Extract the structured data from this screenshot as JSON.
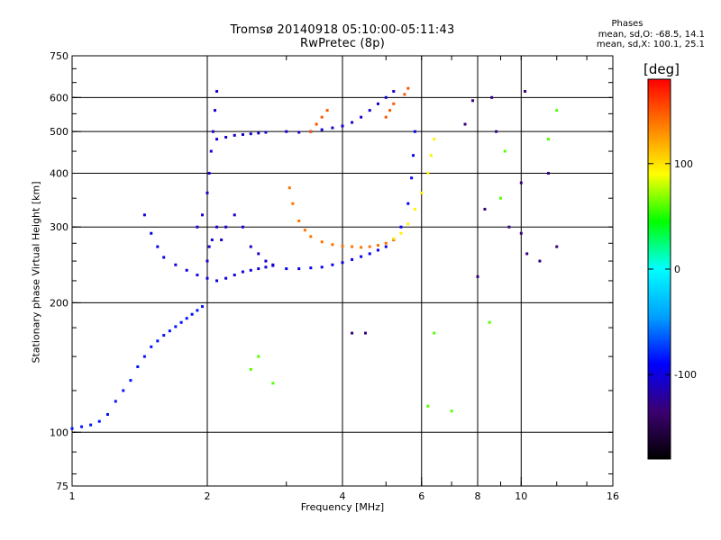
{
  "header": {
    "title_line1": "Tromsø 20140918 05:10:00-05:11:43",
    "title_line2": "RwPretec (8p)"
  },
  "stats": {
    "heading": "Phases",
    "line_o": "mean, sd,O: -68.5, 14.1",
    "line_x": "mean, sd,X: 100.1, 25.1"
  },
  "colorbar": {
    "unit_label": "[deg]",
    "range": [
      -180,
      180
    ],
    "ticks": [
      {
        "value": 100,
        "label": "100"
      },
      {
        "value": 0,
        "label": "0"
      },
      {
        "value": -100,
        "label": "-100"
      }
    ],
    "colors": [
      "#000000",
      "#3b0070",
      "#0000ff",
      "#00a0ff",
      "#00ffff",
      "#00ff00",
      "#ffff00",
      "#ff8000",
      "#ff0000"
    ]
  },
  "chart_data": {
    "type": "scatter",
    "title": "Tromsø 20140918 05:10:00-05:11:43",
    "subtitle": "RwPretec (8p)",
    "xlabel": "Frequency [MHz]",
    "ylabel": "Stationary phase Virtual Height [km]",
    "x_scale": "log",
    "y_scale": "log",
    "xlim": [
      1,
      16
    ],
    "ylim": [
      75,
      750
    ],
    "x_ticks": [
      1,
      2,
      4,
      6,
      8,
      10,
      16
    ],
    "y_ticks": [
      75,
      100,
      200,
      300,
      400,
      500,
      600,
      750
    ],
    "grid_x": [
      2,
      4,
      6,
      8,
      10
    ],
    "grid_y": [
      100,
      200,
      300,
      400,
      500,
      600
    ],
    "color_variable": "phase [deg]",
    "series": [
      {
        "phase": -85,
        "points": [
          [
            1.0,
            102
          ],
          [
            1.05,
            103
          ],
          [
            1.1,
            104
          ],
          [
            1.15,
            106
          ],
          [
            1.2,
            110
          ],
          [
            1.25,
            118
          ],
          [
            1.3,
            125
          ],
          [
            1.35,
            132
          ],
          [
            1.4,
            142
          ],
          [
            1.45,
            150
          ],
          [
            1.5,
            158
          ],
          [
            1.55,
            163
          ],
          [
            1.6,
            168
          ],
          [
            1.65,
            172
          ],
          [
            1.7,
            176
          ],
          [
            1.75,
            180
          ],
          [
            1.8,
            184
          ],
          [
            1.85,
            188
          ],
          [
            1.9,
            192
          ],
          [
            1.95,
            196
          ]
        ]
      },
      {
        "phase": -100,
        "points": [
          [
            1.45,
            320
          ],
          [
            1.5,
            290
          ],
          [
            1.55,
            270
          ],
          [
            1.6,
            255
          ],
          [
            1.7,
            245
          ],
          [
            1.8,
            238
          ],
          [
            1.9,
            232
          ],
          [
            2.0,
            228
          ],
          [
            2.1,
            225
          ],
          [
            2.2,
            228
          ],
          [
            2.3,
            232
          ],
          [
            2.4,
            236
          ],
          [
            2.5,
            238
          ],
          [
            2.6,
            240
          ],
          [
            2.7,
            242
          ],
          [
            2.8,
            244
          ]
        ]
      },
      {
        "phase": -105,
        "points": [
          [
            1.9,
            300
          ],
          [
            1.95,
            320
          ],
          [
            2.0,
            360
          ],
          [
            2.02,
            400
          ],
          [
            2.04,
            450
          ],
          [
            2.06,
            500
          ],
          [
            2.08,
            560
          ],
          [
            2.1,
            620
          ],
          [
            2.0,
            250
          ],
          [
            2.02,
            270
          ],
          [
            2.05,
            280
          ],
          [
            2.1,
            300
          ],
          [
            2.15,
            280
          ],
          [
            2.2,
            300
          ],
          [
            2.3,
            320
          ],
          [
            2.4,
            300
          ],
          [
            2.5,
            270
          ],
          [
            2.6,
            260
          ],
          [
            2.7,
            250
          ],
          [
            2.8,
            245
          ]
        ]
      },
      {
        "phase": -105,
        "points": [
          [
            2.1,
            480
          ],
          [
            2.2,
            485
          ],
          [
            2.3,
            490
          ],
          [
            2.4,
            492
          ],
          [
            2.5,
            494
          ],
          [
            2.6,
            496
          ],
          [
            2.7,
            498
          ],
          [
            3.0,
            500
          ],
          [
            3.2,
            498
          ],
          [
            3.4,
            500
          ],
          [
            3.6,
            505
          ],
          [
            3.8,
            510
          ],
          [
            4.0,
            515
          ],
          [
            4.2,
            525
          ],
          [
            4.4,
            540
          ],
          [
            4.6,
            560
          ],
          [
            4.8,
            580
          ],
          [
            5.0,
            600
          ],
          [
            5.2,
            620
          ]
        ]
      },
      {
        "phase": -95,
        "points": [
          [
            3.0,
            240
          ],
          [
            3.2,
            240
          ],
          [
            3.4,
            241
          ],
          [
            3.6,
            242
          ],
          [
            3.8,
            245
          ],
          [
            4.0,
            248
          ],
          [
            4.2,
            252
          ],
          [
            4.4,
            256
          ],
          [
            4.6,
            260
          ],
          [
            4.8,
            265
          ],
          [
            5.0,
            270
          ],
          [
            5.2,
            280
          ],
          [
            5.4,
            300
          ],
          [
            5.6,
            340
          ],
          [
            5.7,
            390
          ],
          [
            5.75,
            440
          ],
          [
            5.8,
            500
          ]
        ]
      },
      {
        "phase": 140,
        "points": [
          [
            3.05,
            370
          ],
          [
            3.1,
            340
          ],
          [
            3.2,
            310
          ],
          [
            3.3,
            295
          ],
          [
            3.4,
            285
          ],
          [
            3.6,
            277
          ],
          [
            3.8,
            273
          ],
          [
            4.0,
            271
          ],
          [
            4.2,
            270
          ],
          [
            4.4,
            269
          ],
          [
            4.6,
            270
          ],
          [
            4.8,
            272
          ],
          [
            5.0,
            275
          ],
          [
            5.2,
            280
          ]
        ]
      },
      {
        "phase": 95,
        "points": [
          [
            5.2,
            282
          ],
          [
            5.4,
            290
          ],
          [
            5.6,
            305
          ],
          [
            5.8,
            330
          ],
          [
            6.0,
            360
          ],
          [
            6.2,
            400
          ],
          [
            6.3,
            440
          ],
          [
            6.4,
            480
          ]
        ]
      },
      {
        "phase": 150,
        "points": [
          [
            3.4,
            500
          ],
          [
            3.5,
            520
          ],
          [
            3.6,
            540
          ],
          [
            3.7,
            560
          ],
          [
            5.0,
            540
          ],
          [
            5.1,
            560
          ],
          [
            5.2,
            580
          ],
          [
            5.5,
            610
          ],
          [
            5.6,
            630
          ]
        ]
      },
      {
        "phase": 60,
        "points": [
          [
            2.5,
            140
          ],
          [
            2.6,
            150
          ],
          [
            2.8,
            130
          ],
          [
            6.2,
            115
          ],
          [
            6.4,
            170
          ],
          [
            7.0,
            112
          ],
          [
            8.5,
            180
          ],
          [
            9.0,
            350
          ],
          [
            9.2,
            450
          ],
          [
            12.0,
            560
          ],
          [
            11.5,
            480
          ]
        ]
      },
      {
        "phase": -130,
        "points": [
          [
            8.0,
            230
          ],
          [
            8.3,
            330
          ],
          [
            8.8,
            500
          ],
          [
            9.4,
            300
          ],
          [
            10.0,
            290
          ],
          [
            10.0,
            380
          ],
          [
            10.3,
            260
          ],
          [
            11.0,
            250
          ],
          [
            11.5,
            400
          ],
          [
            12.0,
            270
          ],
          [
            4.2,
            170
          ],
          [
            4.5,
            170
          ],
          [
            7.5,
            520
          ],
          [
            7.8,
            590
          ],
          [
            10.2,
            620
          ],
          [
            8.6,
            600
          ]
        ]
      }
    ]
  }
}
